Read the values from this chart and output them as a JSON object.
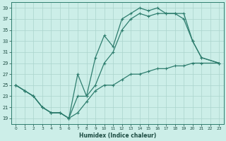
{
  "bg_color": "#cceee8",
  "grid_color": "#aad4cc",
  "line_color": "#2e7d6e",
  "xlabel": "Humidex (Indice chaleur)",
  "xlim": [
    -0.5,
    23.5
  ],
  "ylim": [
    18.0,
    40.0
  ],
  "yticks": [
    19,
    21,
    23,
    25,
    27,
    29,
    31,
    33,
    35,
    37,
    39
  ],
  "xticks": [
    0,
    1,
    2,
    3,
    4,
    5,
    6,
    7,
    8,
    9,
    10,
    11,
    12,
    13,
    14,
    15,
    16,
    17,
    18,
    19,
    20,
    21,
    22,
    23
  ],
  "curve1_x": [
    0,
    1,
    2,
    3,
    4,
    5,
    6,
    7,
    8,
    9,
    10,
    11,
    12,
    13,
    14,
    15,
    16,
    17,
    18,
    19,
    20,
    21,
    23
  ],
  "curve1_y": [
    25,
    24,
    23,
    21,
    20,
    20,
    19,
    27,
    23,
    30,
    34,
    32,
    37,
    38,
    39,
    38.5,
    39,
    38,
    38,
    38,
    33,
    30,
    29
  ],
  "curve2_x": [
    0,
    1,
    2,
    3,
    4,
    5,
    6,
    7,
    8,
    9,
    10,
    11,
    12,
    13,
    14,
    15,
    16,
    17,
    18,
    19,
    20,
    21,
    23
  ],
  "curve2_y": [
    25,
    24,
    23,
    21,
    20,
    20,
    19,
    23,
    23,
    25,
    29,
    31,
    35,
    37,
    38,
    37.5,
    38,
    38,
    38,
    37,
    33,
    30,
    29
  ],
  "curve3_x": [
    0,
    1,
    2,
    3,
    4,
    5,
    6,
    7,
    8,
    9,
    10,
    11,
    12,
    13,
    14,
    15,
    16,
    17,
    18,
    19,
    20,
    21,
    23
  ],
  "curve3_y": [
    25,
    24,
    23,
    21,
    20,
    20,
    19,
    20,
    22,
    24,
    25,
    25,
    26,
    27,
    27,
    27.5,
    28,
    28,
    28.5,
    28.5,
    29,
    29,
    29
  ]
}
